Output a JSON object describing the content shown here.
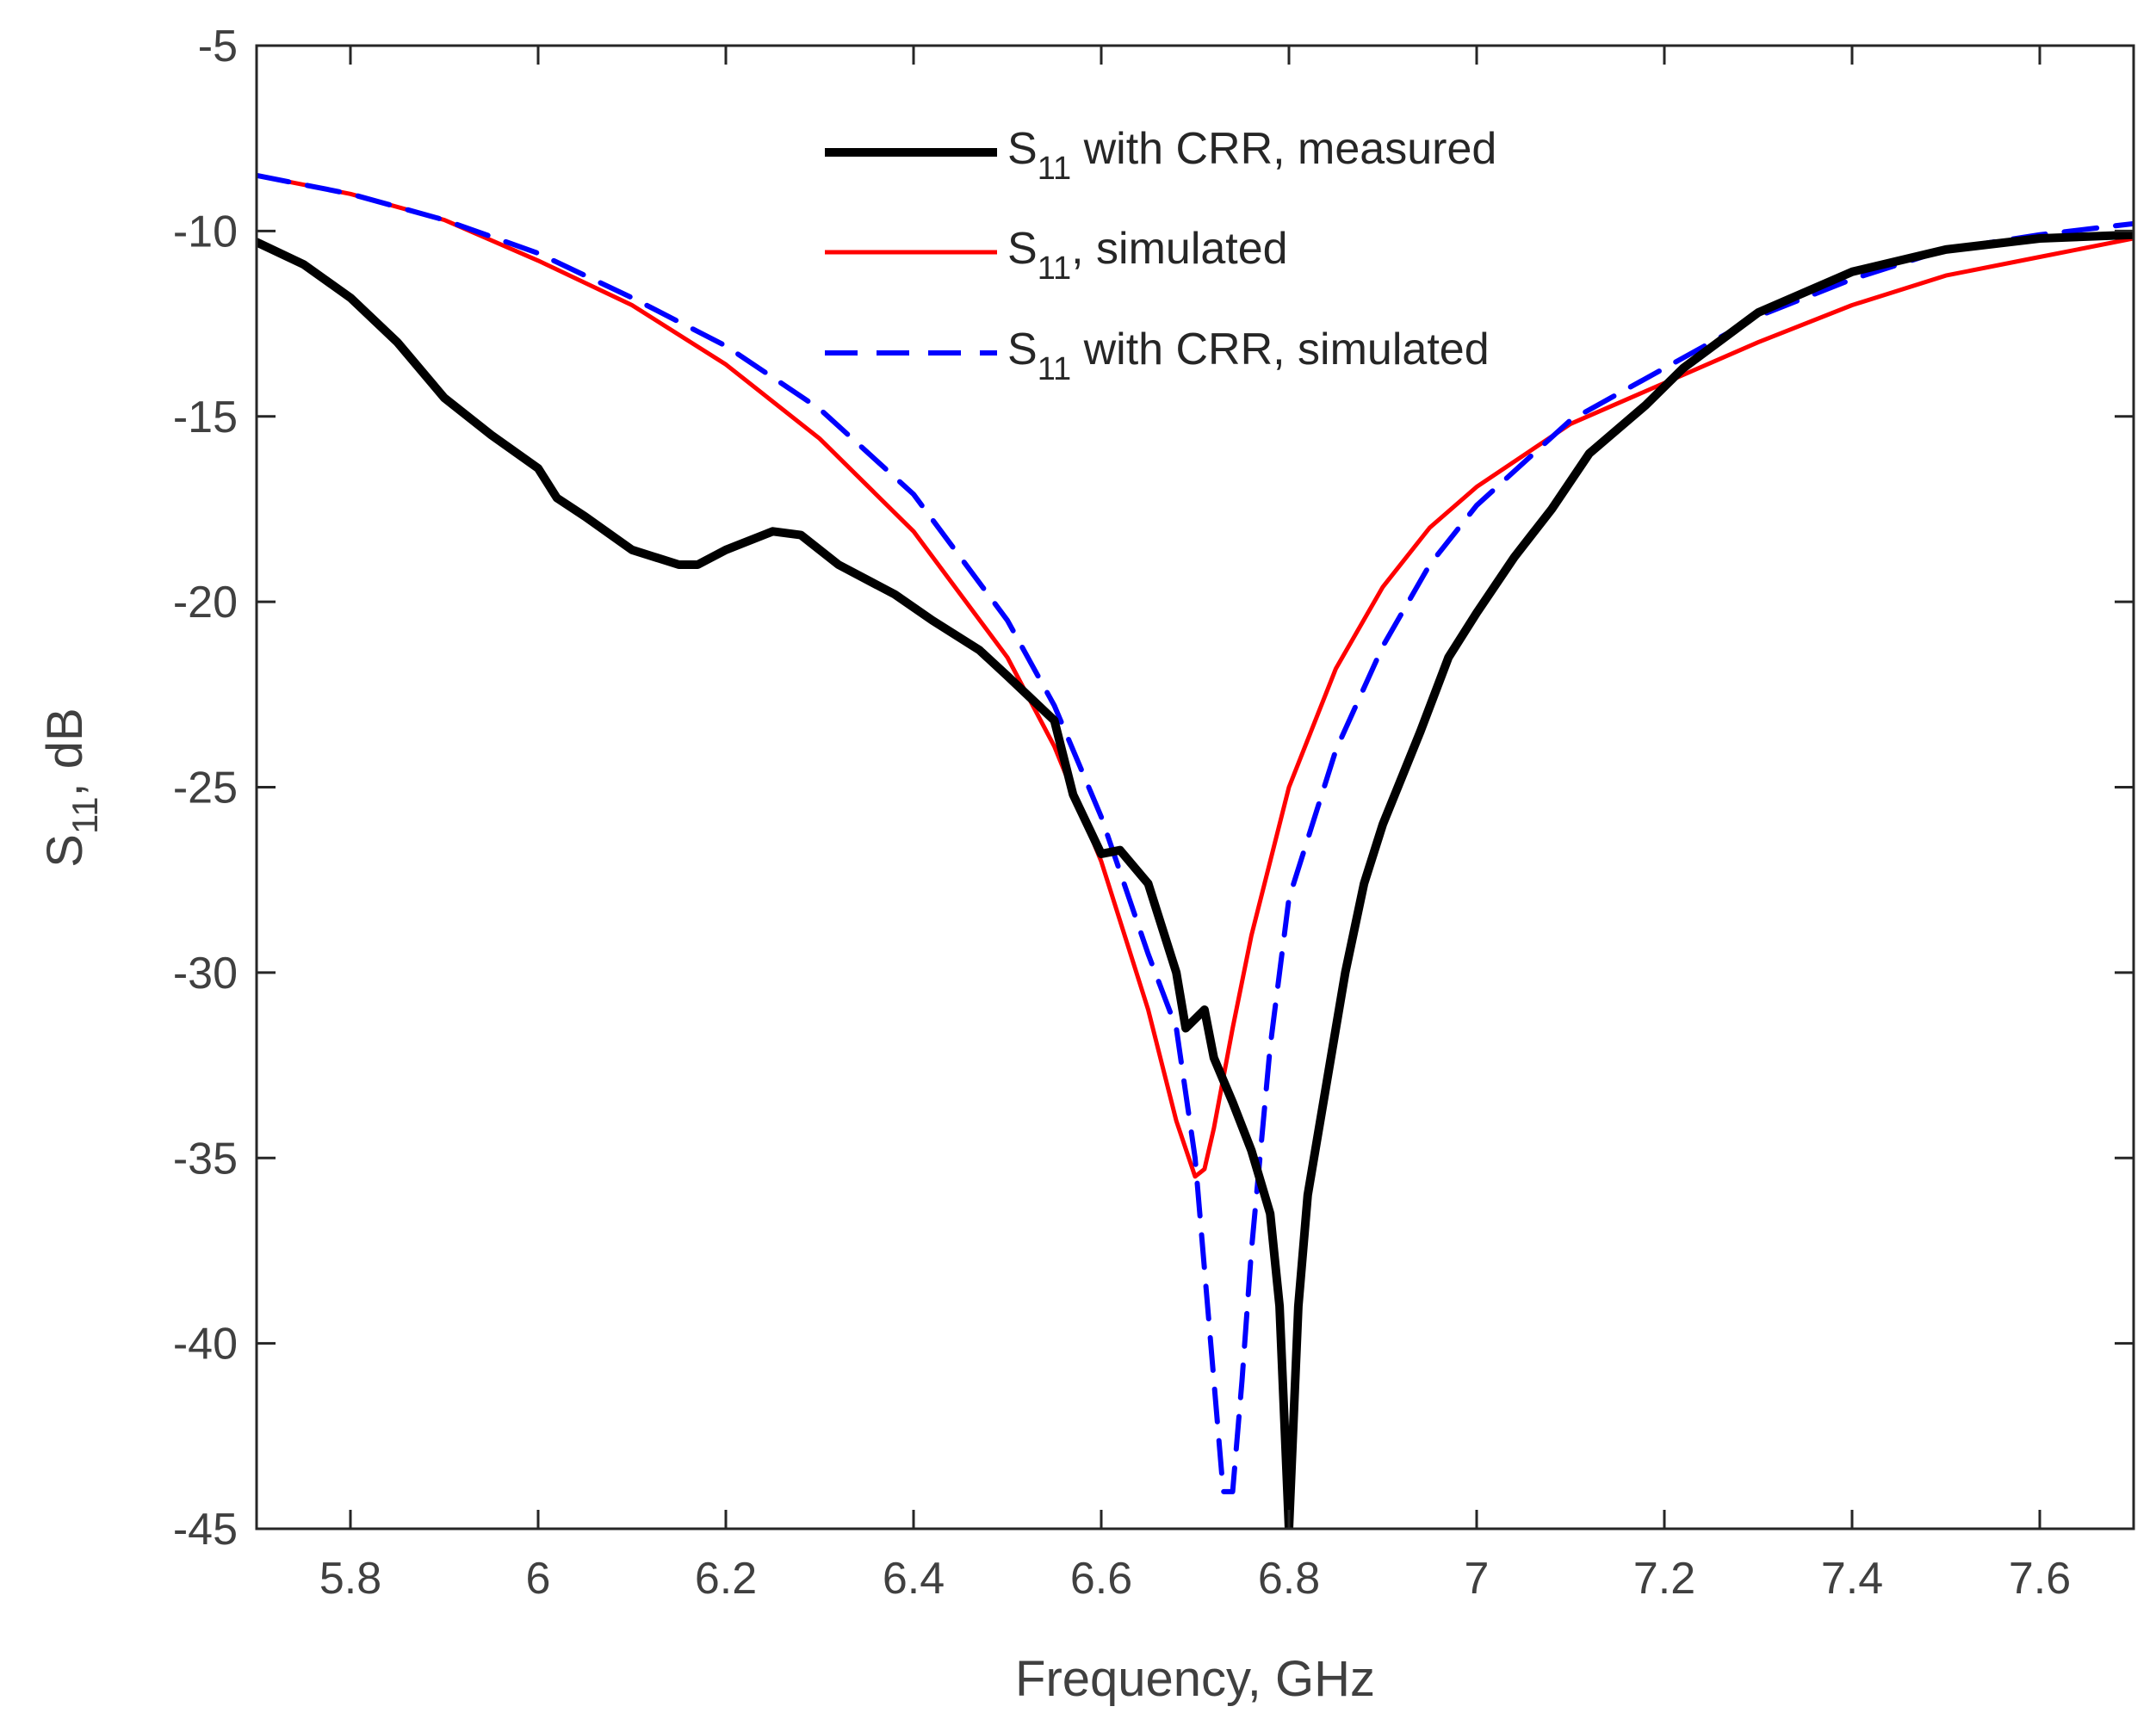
{
  "chart_data": {
    "type": "line",
    "xlabel": "Frequency, GHz",
    "ylabel": {
      "main": "S",
      "sub": "11",
      "suffix": ", dB"
    },
    "xlim": [
      5.7,
      7.7
    ],
    "ylim": [
      -45,
      -5
    ],
    "xticks": [
      5.8,
      6.0,
      6.2,
      6.4,
      6.6,
      6.8,
      7.0,
      7.2,
      7.4,
      7.6
    ],
    "xtick_labels": [
      "5.8",
      "6",
      "6.2",
      "6.4",
      "6.6",
      "6.8",
      "7",
      "7.2",
      "7.4",
      "7.6"
    ],
    "yticks": [
      -5,
      -10,
      -15,
      -20,
      -25,
      -30,
      -35,
      -40,
      -45
    ],
    "ytick_labels": [
      "-5",
      "-10",
      "-15",
      "-20",
      "-25",
      "-30",
      "-35",
      "-40",
      "-45"
    ],
    "grid": false,
    "legend_position": "top-center",
    "series": [
      {
        "name": {
          "main": "S",
          "sub": "11",
          "rest": " with CRR, measured"
        },
        "color": "#000000",
        "style": "solid-thick",
        "x": [
          5.7,
          5.75,
          5.8,
          5.85,
          5.9,
          5.95,
          6.0,
          6.02,
          6.05,
          6.1,
          6.15,
          6.17,
          6.2,
          6.25,
          6.28,
          6.32,
          6.38,
          6.42,
          6.47,
          6.5,
          6.55,
          6.57,
          6.6,
          6.62,
          6.65,
          6.68,
          6.69,
          6.71,
          6.72,
          6.74,
          6.76,
          6.78,
          6.79,
          6.8,
          6.81,
          6.82,
          6.84,
          6.86,
          6.88,
          6.9,
          6.94,
          6.97,
          7.0,
          7.04,
          7.08,
          7.12,
          7.18,
          7.22,
          7.3,
          7.4,
          7.5,
          7.6,
          7.7
        ],
        "y": [
          -10.3,
          -10.9,
          -11.8,
          -13.0,
          -14.5,
          -15.5,
          -16.4,
          -17.2,
          -17.7,
          -18.6,
          -19.0,
          -19.0,
          -18.6,
          -18.1,
          -18.2,
          -19.0,
          -19.8,
          -20.5,
          -21.3,
          -22.0,
          -23.2,
          -25.2,
          -26.8,
          -26.7,
          -27.6,
          -30.0,
          -31.5,
          -31.0,
          -32.3,
          -33.5,
          -34.8,
          -36.5,
          -39.0,
          -45.0,
          -39.0,
          -36.0,
          -33.0,
          -30.0,
          -27.6,
          -26.0,
          -23.5,
          -21.5,
          -20.3,
          -18.8,
          -17.5,
          -16.0,
          -14.7,
          -13.7,
          -12.2,
          -11.1,
          -10.5,
          -10.2,
          -10.1
        ]
      },
      {
        "name": {
          "main": "S",
          "sub": "11",
          "rest": ", simulated"
        },
        "color": "#ff0000",
        "style": "solid",
        "x": [
          5.7,
          5.8,
          5.9,
          6.0,
          6.1,
          6.2,
          6.3,
          6.4,
          6.5,
          6.55,
          6.6,
          6.65,
          6.68,
          6.7,
          6.71,
          6.72,
          6.74,
          6.76,
          6.8,
          6.85,
          6.9,
          6.95,
          7.0,
          7.1,
          7.2,
          7.3,
          7.4,
          7.5,
          7.6,
          7.7
        ],
        "y": [
          -8.5,
          -9.0,
          -9.7,
          -10.8,
          -12.0,
          -13.6,
          -15.6,
          -18.1,
          -21.5,
          -23.9,
          -27.0,
          -31.0,
          -34.0,
          -35.5,
          -35.3,
          -34.2,
          -31.5,
          -29.0,
          -25.0,
          -21.8,
          -19.6,
          -18.0,
          -16.9,
          -15.2,
          -14.1,
          -13.0,
          -12.0,
          -11.2,
          -10.7,
          -10.2
        ]
      },
      {
        "name": {
          "main": "S",
          "sub": "11",
          "rest": " with CRR, simulated"
        },
        "color": "#0000ff",
        "style": "dashed",
        "x": [
          5.7,
          5.8,
          5.9,
          6.0,
          6.1,
          6.2,
          6.3,
          6.4,
          6.5,
          6.55,
          6.6,
          6.65,
          6.68,
          6.7,
          6.72,
          6.73,
          6.74,
          6.75,
          6.76,
          6.78,
          6.8,
          6.85,
          6.9,
          6.95,
          7.0,
          7.1,
          7.2,
          7.3,
          7.4,
          7.5,
          7.6,
          7.7
        ],
        "y": [
          -8.5,
          -9.0,
          -9.7,
          -10.6,
          -11.8,
          -13.1,
          -14.8,
          -17.1,
          -20.5,
          -22.8,
          -25.8,
          -29.5,
          -31.5,
          -35.0,
          -41.0,
          -44.0,
          -44.0,
          -41.0,
          -37.5,
          -32.0,
          -28.0,
          -24.0,
          -21.2,
          -19.0,
          -17.4,
          -15.1,
          -13.7,
          -12.3,
          -11.3,
          -10.5,
          -10.1,
          -9.8
        ]
      }
    ]
  }
}
